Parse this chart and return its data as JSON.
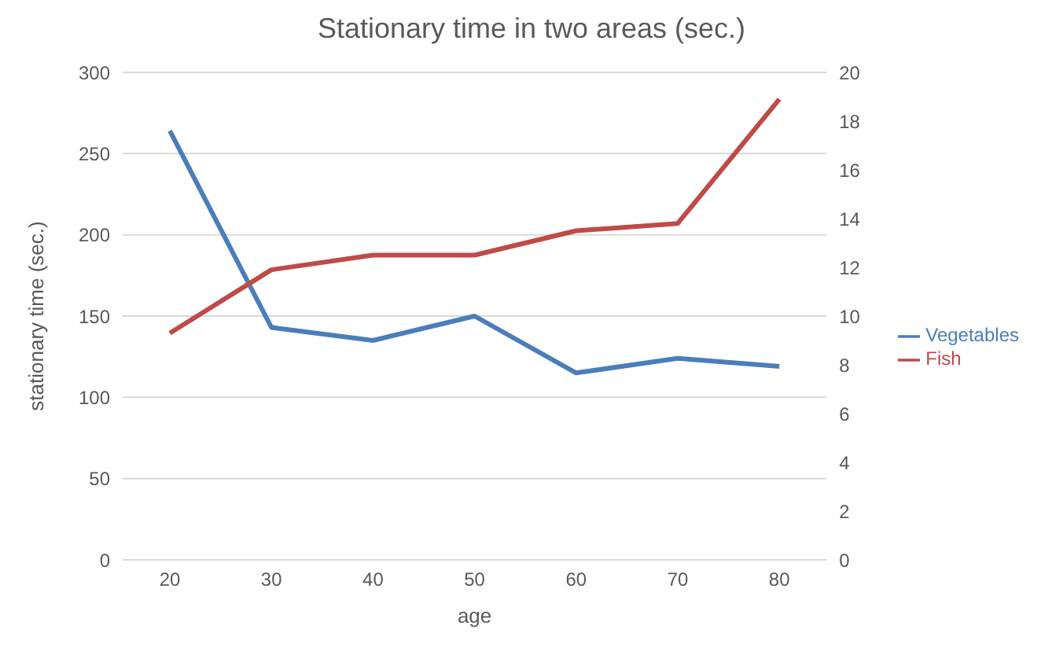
{
  "chart_data": {
    "type": "line",
    "title": "Stationary time in two areas (sec.)",
    "xlabel": "age",
    "ylabel": "stationary time (sec.)",
    "categories": [
      "20",
      "30",
      "40",
      "50",
      "60",
      "70",
      "80"
    ],
    "series": [
      {
        "name": "Vegetables",
        "color": "#4a7ebb",
        "values": [
          264,
          143,
          135,
          150,
          115,
          124,
          119
        ]
      },
      {
        "name": "Fish",
        "color": "#be4b48",
        "axis": "y2",
        "values": [
          9.3,
          11.9,
          12.5,
          12.5,
          13.5,
          13.8,
          18.9
        ]
      }
    ],
    "ylim": [
      0,
      300
    ],
    "yticks": [
      0,
      50,
      100,
      150,
      200,
      250,
      300
    ],
    "y2lim": [
      0,
      20
    ],
    "y2ticks": [
      0,
      2,
      4,
      6,
      8,
      10,
      12,
      14,
      16,
      18,
      20
    ],
    "grid": "y",
    "legend": "right",
    "marker": "none",
    "line_style": "solid"
  }
}
